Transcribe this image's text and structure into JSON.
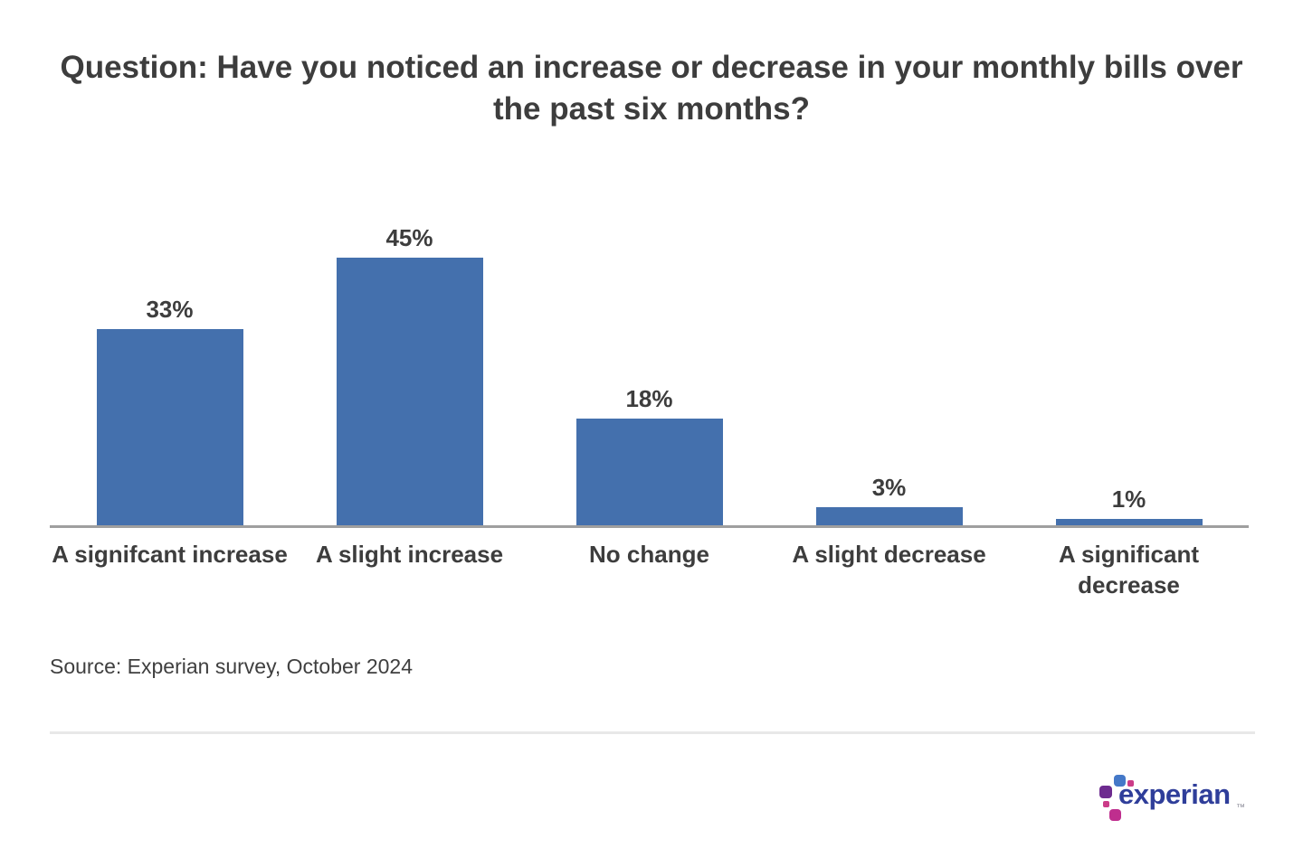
{
  "title": "Question: Have you noticed an increase or decrease in your monthly bills over the past six months?",
  "chart_data": {
    "type": "bar",
    "title": "Question: Have you noticed an increase or decrease in your monthly bills over the past six months?",
    "categories": [
      "A signifcant increase",
      "A slight increase",
      "No change",
      "A slight decrease",
      "A significant\ndecrease"
    ],
    "values": [
      33,
      45,
      18,
      3,
      1
    ],
    "value_labels": [
      "33%",
      "45%",
      "18%",
      "3%",
      "1%"
    ],
    "xlabel": "",
    "ylabel": "",
    "ylim": [
      0,
      45
    ],
    "grid": false,
    "legend": "none",
    "bar_color": "#4470ad",
    "axis_color": "#9f9f9f",
    "label_color": "#3d3d3d"
  },
  "source": "Source: Experian survey, October 2024",
  "footer": {
    "logo_text": "experian",
    "trademark": "™",
    "logo_text_color": "#2f3e9a",
    "logo_block_colors": {
      "blue": "#4478c8",
      "purple": "#6d2b8f",
      "magenta": "#bf2e8e",
      "pink_dots": "#cb3c88"
    }
  },
  "colors": {
    "background": "#ffffff",
    "divider": "#e8e8e8"
  }
}
